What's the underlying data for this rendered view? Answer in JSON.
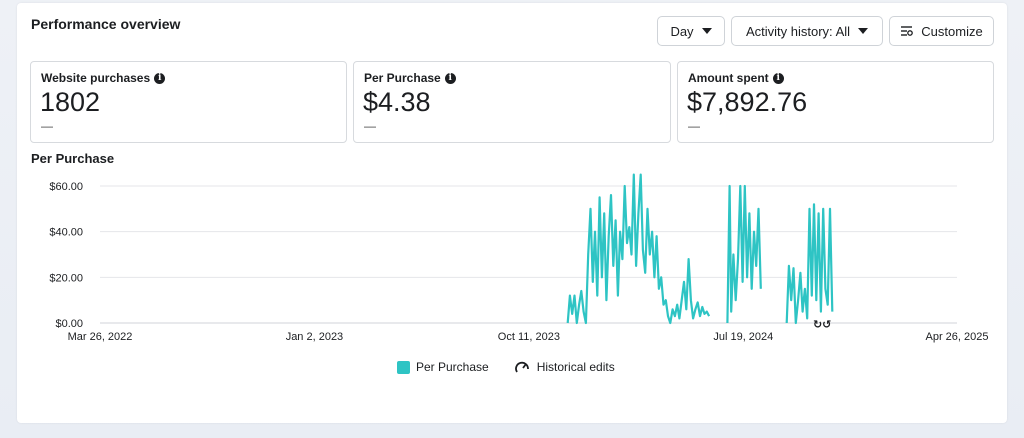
{
  "header": {
    "title": "Performance overview",
    "day_label": "Day",
    "activity_label": "Activity history: All",
    "customize_label": "Customize"
  },
  "metrics": [
    {
      "label": "Website purchases",
      "value": "1802",
      "delta": "—"
    },
    {
      "label": "Per Purchase",
      "value": "$4.38",
      "delta": "—"
    },
    {
      "label": "Amount spent",
      "value": "$7,892.76",
      "delta": "—"
    }
  ],
  "chart_title": "Per Purchase",
  "legend": {
    "series_label": "Per Purchase",
    "edits_label": "Historical edits"
  },
  "colors": {
    "series": "#2ec4c4",
    "grid": "#e4e6ea"
  },
  "chart_data": {
    "type": "line",
    "title": "Per Purchase",
    "x_ticks": [
      "Mar 26, 2022",
      "Jan 2, 2023",
      "Oct 11, 2023",
      "Jul 19, 2024",
      "Apr 26, 2025"
    ],
    "y_ticks": [
      "$0.00",
      "$20.00",
      "$40.00",
      "$60.00"
    ],
    "ylim": [
      0,
      65
    ],
    "xlim": [
      "2022-03-26",
      "2025-04-26"
    ],
    "grid": true,
    "legend": "bottom",
    "series": [
      {
        "name": "Per Purchase",
        "points": [
          [
            "2023-12-01",
            0
          ],
          [
            "2023-12-04",
            12
          ],
          [
            "2023-12-07",
            4
          ],
          [
            "2023-12-10",
            12
          ],
          [
            "2023-12-13",
            0
          ],
          [
            "2023-12-16",
            8
          ],
          [
            "2023-12-19",
            14
          ],
          [
            "2023-12-22",
            5
          ],
          [
            "2023-12-25",
            0
          ],
          [
            "2023-12-28",
            30
          ],
          [
            "2023-12-31",
            50
          ],
          [
            "2024-01-03",
            18
          ],
          [
            "2024-01-06",
            40
          ],
          [
            "2024-01-09",
            12
          ],
          [
            "2024-01-12",
            55
          ],
          [
            "2024-01-15",
            20
          ],
          [
            "2024-01-18",
            48
          ],
          [
            "2024-01-21",
            10
          ],
          [
            "2024-01-24",
            38
          ],
          [
            "2024-01-27",
            56
          ],
          [
            "2024-01-30",
            25
          ],
          [
            "2024-02-02",
            45
          ],
          [
            "2024-02-05",
            12
          ],
          [
            "2024-02-08",
            40
          ],
          [
            "2024-02-11",
            28
          ],
          [
            "2024-02-14",
            60
          ],
          [
            "2024-02-17",
            35
          ],
          [
            "2024-02-20",
            42
          ],
          [
            "2024-02-23",
            30
          ],
          [
            "2024-02-26",
            65
          ],
          [
            "2024-02-29",
            25
          ],
          [
            "2024-03-03",
            48
          ],
          [
            "2024-03-06",
            65
          ],
          [
            "2024-03-09",
            32
          ],
          [
            "2024-03-12",
            22
          ],
          [
            "2024-03-15",
            50
          ],
          [
            "2024-03-18",
            30
          ],
          [
            "2024-03-21",
            40
          ],
          [
            "2024-03-24",
            20
          ],
          [
            "2024-03-27",
            38
          ],
          [
            "2024-03-30",
            15
          ],
          [
            "2024-04-02",
            20
          ],
          [
            "2024-04-05",
            8
          ],
          [
            "2024-04-08",
            10
          ],
          [
            "2024-04-11",
            3
          ],
          [
            "2024-04-14",
            0
          ],
          [
            "2024-04-17",
            6
          ],
          [
            "2024-04-20",
            3
          ],
          [
            "2024-04-23",
            8
          ],
          [
            "2024-04-26",
            2
          ],
          [
            "2024-04-29",
            10
          ],
          [
            "2024-05-02",
            18
          ],
          [
            "2024-05-05",
            6
          ],
          [
            "2024-05-08",
            28
          ],
          [
            "2024-05-11",
            10
          ],
          [
            "2024-05-14",
            2
          ],
          [
            "2024-05-17",
            6
          ],
          [
            "2024-05-20",
            9
          ],
          [
            "2024-05-23",
            3
          ],
          [
            "2024-05-26",
            7
          ],
          [
            "2024-05-29",
            4
          ],
          [
            "2024-06-01",
            5
          ],
          [
            "2024-06-04",
            3
          ],
          [
            "2024-06-28",
            0
          ],
          [
            "2024-07-01",
            60
          ],
          [
            "2024-07-03",
            5
          ],
          [
            "2024-07-06",
            30
          ],
          [
            "2024-07-09",
            10
          ],
          [
            "2024-07-12",
            28
          ],
          [
            "2024-07-15",
            60
          ],
          [
            "2024-07-18",
            18
          ],
          [
            "2024-07-21",
            60
          ],
          [
            "2024-07-24",
            20
          ],
          [
            "2024-07-27",
            48
          ],
          [
            "2024-07-30",
            15
          ],
          [
            "2024-08-02",
            40
          ],
          [
            "2024-08-05",
            25
          ],
          [
            "2024-08-08",
            50
          ],
          [
            "2024-08-11",
            15
          ],
          [
            "2024-09-14",
            0
          ],
          [
            "2024-09-17",
            25
          ],
          [
            "2024-09-20",
            10
          ],
          [
            "2024-09-23",
            24
          ],
          [
            "2024-09-26",
            0
          ],
          [
            "2024-09-29",
            10
          ],
          [
            "2024-10-02",
            22
          ],
          [
            "2024-10-05",
            5
          ],
          [
            "2024-10-08",
            15
          ],
          [
            "2024-10-11",
            2
          ],
          [
            "2024-10-14",
            50
          ],
          [
            "2024-10-17",
            12
          ],
          [
            "2024-10-20",
            52
          ],
          [
            "2024-10-23",
            10
          ],
          [
            "2024-10-26",
            48
          ],
          [
            "2024-10-29",
            5
          ],
          [
            "2024-11-01",
            50
          ],
          [
            "2024-11-04",
            15
          ],
          [
            "2024-11-07",
            8
          ],
          [
            "2024-11-10",
            50
          ],
          [
            "2024-11-13",
            5
          ]
        ]
      }
    ]
  }
}
